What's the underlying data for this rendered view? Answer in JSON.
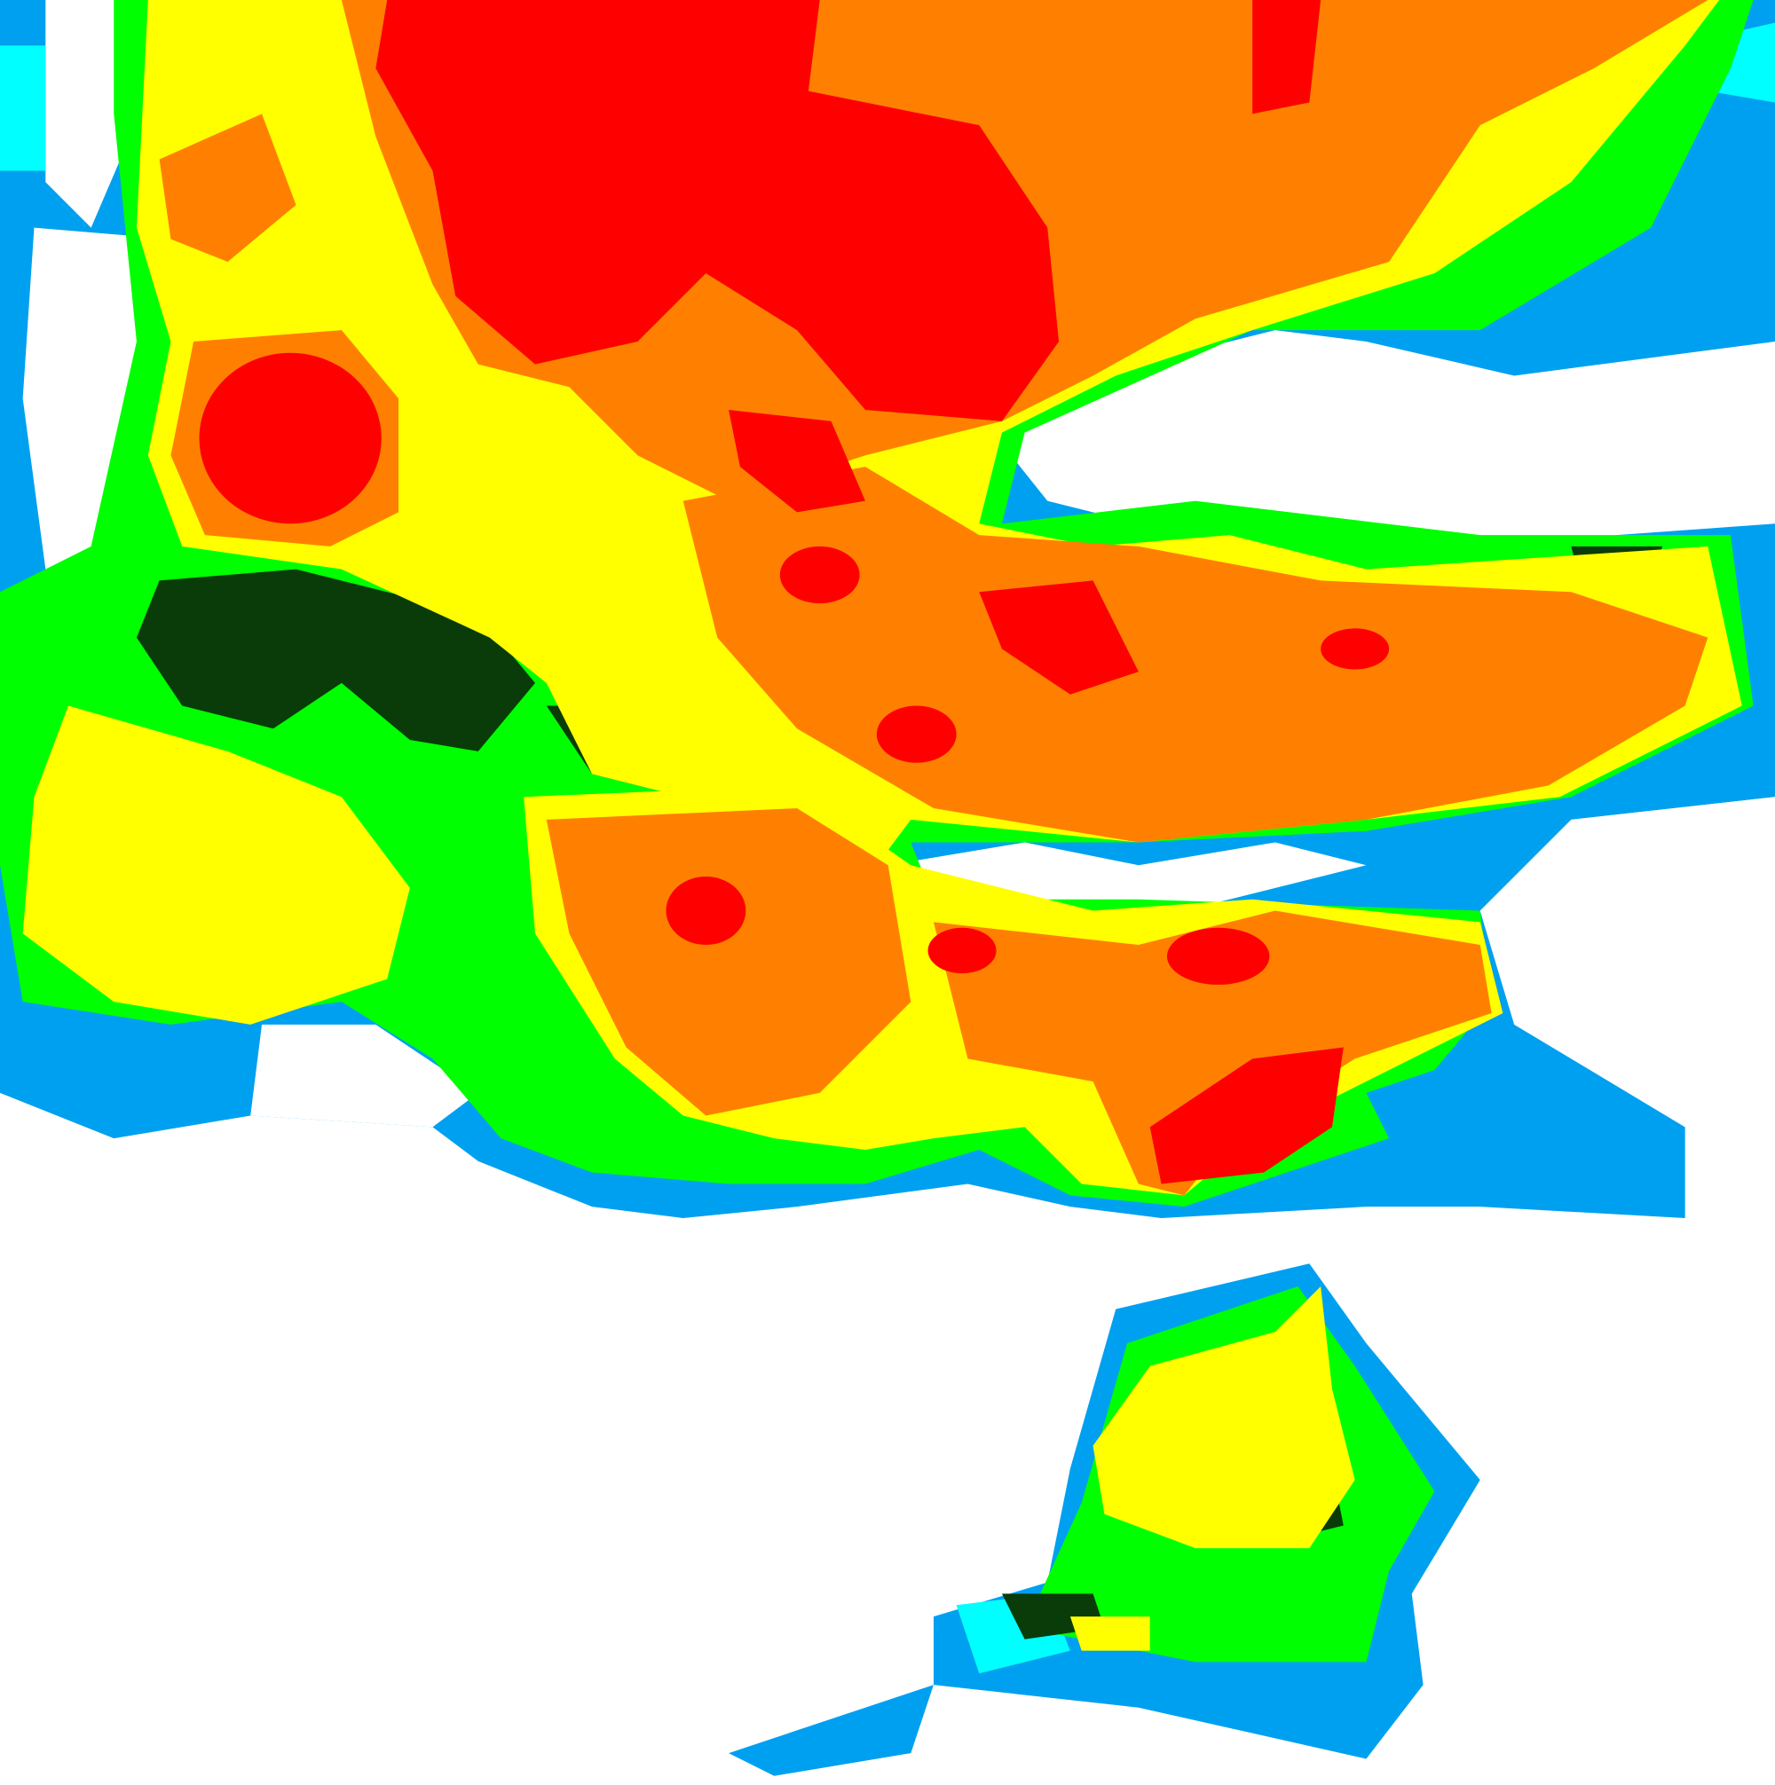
{
  "map": {
    "palette": {
      "background": "#ffffff",
      "light_blue": "#00a0f0",
      "cyan": "#00ffff",
      "green": "#00ff00",
      "dark_green": "#0a3c0a",
      "yellow": "#ffff00",
      "orange": "#ff8000",
      "red": "#ff0000"
    }
  }
}
